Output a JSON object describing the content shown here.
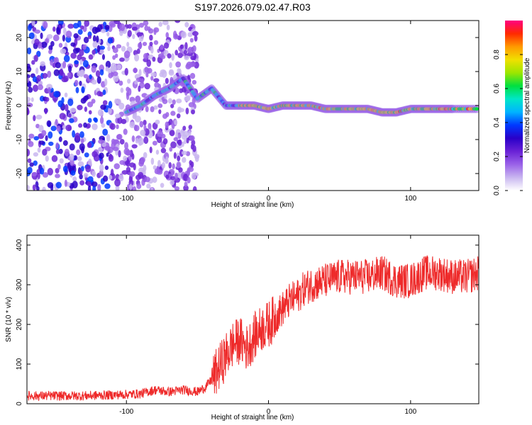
{
  "title": "S197.2026.079.02.47.R03",
  "colors": {
    "snr_line": "#ee2a2a",
    "frame": "#000000",
    "colormap": [
      "#ffffff",
      "#c9b6f0",
      "#9a62e8",
      "#6a22d6",
      "#2a00c8",
      "#0038ff",
      "#00b4ff",
      "#00e6c8",
      "#00e040",
      "#9ce600",
      "#f0e000",
      "#ff9a00",
      "#ff2a00",
      "#ff0080"
    ]
  },
  "chart_data": [
    {
      "type": "heatmap",
      "title": "",
      "xlabel": "Height of straight line (km)",
      "ylabel": "Frequency (Hz)",
      "xlim": [
        -170,
        148
      ],
      "ylim": [
        -25,
        25
      ],
      "xticks": [
        -100,
        0,
        100
      ],
      "yticks": [
        -20,
        -10,
        0,
        10,
        20
      ],
      "colorbar": {
        "label": "Normalized spectral amplitude",
        "range": [
          0,
          1
        ],
        "ticks": [
          0.0,
          0.2,
          0.4,
          0.6,
          0.8
        ]
      },
      "ridge": {
        "description_points_x": [
          -100,
          -90,
          -80,
          -70,
          -60,
          -50,
          -40,
          -30,
          -20,
          -10,
          0,
          10,
          20,
          30,
          40,
          50,
          60,
          70,
          80,
          90,
          100,
          110,
          120,
          130,
          148
        ],
        "frequency_hz": [
          -2,
          0,
          3,
          5,
          8,
          2,
          5,
          0,
          0,
          0,
          -1,
          0,
          0,
          0,
          -1,
          -1,
          -1,
          -1,
          -2,
          -2,
          -1,
          -1,
          -1,
          -1,
          -1
        ]
      }
    },
    {
      "type": "line",
      "title": "",
      "xlabel": "Height of straight line (km)",
      "ylabel": "SNR (10 * v/v)",
      "xlim": [
        -170,
        148
      ],
      "ylim": [
        0,
        425
      ],
      "xticks": [
        -100,
        0,
        100
      ],
      "yticks": [
        0,
        100,
        200,
        300,
        400
      ],
      "series": [
        {
          "name": "SNR",
          "x": [
            -170,
            -150,
            -130,
            -110,
            -90,
            -80,
            -70,
            -60,
            -50,
            -45,
            -40,
            -35,
            -30,
            -25,
            -20,
            -15,
            -10,
            -5,
            0,
            5,
            10,
            15,
            20,
            25,
            30,
            40,
            50,
            60,
            70,
            80,
            90,
            100,
            110,
            120,
            130,
            140,
            148
          ],
          "y": [
            20,
            20,
            20,
            22,
            25,
            35,
            30,
            35,
            30,
            40,
            60,
            90,
            120,
            150,
            160,
            140,
            170,
            190,
            200,
            220,
            240,
            260,
            270,
            290,
            300,
            310,
            320,
            320,
            320,
            330,
            310,
            310,
            330,
            330,
            320,
            320,
            330
          ]
        }
      ]
    }
  ]
}
